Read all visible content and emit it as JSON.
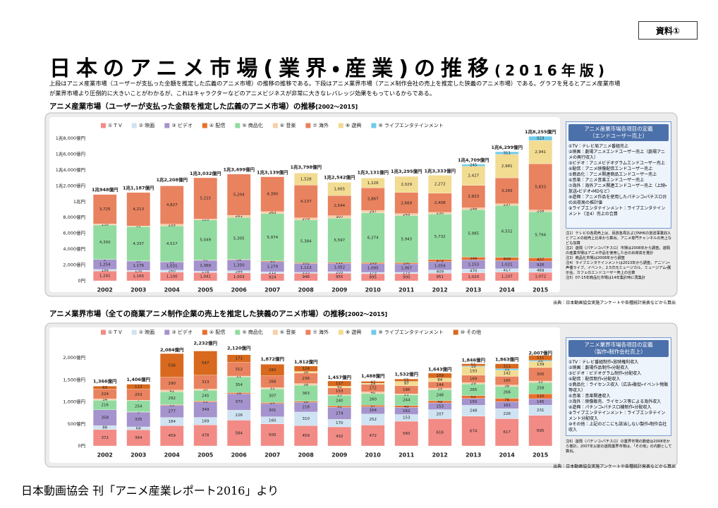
{
  "header": {
    "badge": "資料①",
    "title": "日本のアニメ市場(業界・産業)の推移",
    "title_suffix": "(2016年版)",
    "description": [
      "上段はアニメ産業市場（ユーザーが支払った金額を推定した広義のアニメ市場）の推移の推移である。下段はアニメ業界市場（アニメ制作会社の売上を推定した狭義のアニメ市場）である。グラフを見るとアニメ産業市場",
      "が業界市場より圧倒的に大きいことがわかるが、これはキャラクターなどのアニメビジネスが非常に大きなレバレッジ効果をもっているからである。"
    ]
  },
  "chart_data": [
    {
      "type": "bar",
      "stacked": true,
      "title": "アニメ産業市場（ユーザーが支払った金額を推定した広義のアニメ市場）の推移",
      "subtitle": "[2002〜2015]",
      "categories": [
        "2002",
        "2003",
        "2004",
        "2005",
        "2006",
        "2007",
        "2008",
        "2009",
        "2010",
        "2011",
        "2012",
        "2013",
        "2014",
        "2015"
      ],
      "ylim": [
        0,
        19000
      ],
      "yticks": [
        {
          "value": 0,
          "label": "0円"
        },
        {
          "value": 2000,
          "label": "2,000億円"
        },
        {
          "value": 4000,
          "label": "4,000億円"
        },
        {
          "value": 6000,
          "label": "6,000億円"
        },
        {
          "value": 8000,
          "label": "8,000億円"
        },
        {
          "value": 10000,
          "label": "1兆円"
        },
        {
          "value": 12000,
          "label": "1兆2,000億円"
        },
        {
          "value": 14000,
          "label": "1兆4,000億円"
        },
        {
          "value": 16000,
          "label": "1兆6,000億円"
        },
        {
          "value": 18000,
          "label": "1兆8,000億円"
        }
      ],
      "grid": false,
      "series": [
        {
          "name": "① T V",
          "color": "#f28b86",
          "values": [
            1241,
            1165,
            1100,
            1041,
            1003,
            924,
            946,
            955,
            895,
            900,
            951,
            1020,
            1107,
            1072
          ],
          "value_labels": [
            "1,241",
            "1,165",
            "1,100",
            "1,041",
            "1,003",
            "924",
            "946",
            "955",
            "895",
            "900",
            "951",
            "1,020",
            "1,107",
            "1,072"
          ]
        },
        {
          "name": "② 映画",
          "color": "#cfe3f2",
          "values": [
            198,
            156,
            260,
            178,
            284,
            212,
            133,
            205,
            175,
            175,
            409,
            470,
            417,
            469
          ],
          "value_labels": [
            "198",
            "156",
            "260",
            "178",
            "284",
            "212",
            "133",
            "205",
            "175",
            "175",
            "409",
            "470",
            "417",
            "469"
          ]
        },
        {
          "name": "③ ビデオ",
          "color": "#a493cc",
          "values": [
            1254,
            1176,
            1031,
            1369,
            1350,
            1279,
            1113,
            1052,
            1095,
            1067,
            1059,
            1153,
            1021,
            926
          ],
          "value_labels": [
            "1,254",
            "1,176",
            "1,031",
            "1,369",
            "1,350",
            "1,279",
            "1,113",
            "1,052",
            "1,095",
            "1,067",
            "1,059",
            "1,153",
            "1,021",
            "926"
          ]
        },
        {
          "name": "④ 配信",
          "color": "#e8702e",
          "values": [
            2,
            10,
            18,
            41,
            64,
            95,
            102,
            112,
            149,
            160,
            272,
            348,
            408,
            437
          ],
          "value_labels": [
            "2",
            "10",
            "18",
            "41",
            "64",
            "95",
            "102",
            "112",
            "149",
            "160",
            "272",
            "348",
            "408",
            "437"
          ]
        },
        {
          "name": "⑤ 商品化",
          "color": "#92dba0",
          "values": [
            4350,
            4337,
            4517,
            5049,
            5305,
            5974,
            5384,
            5597,
            6274,
            5943,
            5732,
            5985,
            6552,
            5794
          ],
          "value_labels": [
            "4,350",
            "4,337",
            "4,517",
            "5,049",
            "5,305",
            "5,974",
            "5,384",
            "5,597",
            "6,274",
            "5,943",
            "5,732",
            "5,985",
            "6,552",
            "5,794"
          ]
        },
        {
          "name": "⑥ 音楽",
          "color": "#f7cfa8",
          "values": [
            138,
            91,
            235,
            120,
            261,
            263,
            270,
            307,
            297,
            245,
            230,
            246,
            237,
            258
          ],
          "value_labels": [
            "138",
            "91",
            "235",
            "120",
            "261",
            "263",
            "270",
            "307",
            "297",
            "245",
            "230",
            "246",
            "237",
            "258"
          ]
        },
        {
          "name": "⑦ 海外",
          "color": "#e9825e",
          "values": [
            3725,
            4213,
            4827,
            5215,
            5204,
            4390,
            4137,
            2544,
            2867,
            2669,
            2408,
            2823,
            3265,
            5833
          ],
          "value_labels": [
            "3,725",
            "4,213",
            "4,827",
            "5,215",
            "5,204",
            "4,390",
            "4,137",
            "2,544",
            "2,867",
            "2,669",
            "2,408",
            "2,823",
            "3,265",
            "5,833"
          ]
        },
        {
          "name": "⑧ 遊興",
          "color": "#f2dc92",
          "values": [
            null,
            null,
            null,
            null,
            null,
            null,
            1528,
            1665,
            1226,
            2029,
            2272,
            2427,
            2981,
            2941
          ],
          "value_labels": [
            null,
            null,
            null,
            null,
            null,
            null,
            "1,528",
            "1,665",
            "1,226",
            "2,029",
            "2,272",
            "2,427",
            "2,981",
            "2,941"
          ]
        },
        {
          "name": "⑨ ライブエンタテインメント",
          "color": "#6fcbe9",
          "values": [
            null,
            null,
            null,
            null,
            null,
            null,
            null,
            null,
            null,
            null,
            null,
            245,
            311,
            523
          ],
          "value_labels": [
            null,
            null,
            null,
            null,
            null,
            null,
            null,
            null,
            null,
            null,
            null,
            "245",
            "311",
            "523"
          ]
        }
      ],
      "totals": {
        "values": [
          10948,
          11187,
          12208,
          13032,
          13499,
          13139,
          13798,
          12542,
          13131,
          13295,
          13333,
          14709,
          16299,
          18255
        ],
        "value_labels": [
          "1兆948億円",
          "1兆1,187億円",
          "1兆2,208億円",
          "1兆3,032億円",
          "1兆3,499億円",
          "1兆3,139億円",
          "1兆3,798億円",
          "1兆2,542億円",
          "1兆3,131億円",
          "1兆3,295億円",
          "1兆3,333億円",
          "1兆4,709億円",
          "1兆6,299億円",
          "1兆8,255億円"
        ]
      },
      "definitions": {
        "title": "アニメ産業市場各項目の定義",
        "subtitle": "（エンドユーザー売上）",
        "items": [
          "①TV：テレビ局アニメ番組売上",
          "②映画：劇場アニメエンドユーザー売上（劇場アニメの興行収入）",
          "③ビデオ：アニメビデオグラムエンドユーザー売上",
          "④配信：アニメ映像配信エンドユーザー売上",
          "⑤商品化：アニメ関連商品エンドユーザー売上",
          "⑥音楽：アニメ音楽エンドユーザー売上",
          "⑦海外：海外アニメ関連エンドユーザー売上（上映・放送・ビデオ・MDなど）",
          "⑧遊興：アニメ作品を使用したパチンコ・パチスロ台の出荷高の推計値",
          "⑨ライブエンタテインメント：ライブエンタテインメント（注4）売上の合算"
        ],
        "notes": [
          "注1）テレビの各局売上は、民放各局およびNHKの放送事業収入とアニメの総売上比率から算出。アニメ専門チャンネルの売上なども加算",
          "注2）遊興（パチンコ・パチスロ）市場は2008年から調査。遊興の産業市場はアニメ作品を使用した台の出荷高を推計",
          "注3）商品化市場は2008年から調査",
          "注4）ライブエンタテインメントは2013年から調査。アニソン・声優ライブ、イベント、2.5次元ミュージカル、ミュージアム・展示会、カフェのエンドユーザー売上の合算",
          "注5）07-15年商品化市場は14年集計時に再集計"
        ]
      },
      "source": "出典：日本動画協会実施アンケートや各種統計発表などから算出"
    },
    {
      "type": "bar",
      "stacked": true,
      "title": "アニメ業界市場（全ての商業アニメ制作企業の売上を推定した狭義のアニメ市場）の推移",
      "subtitle": "[2002〜2015]",
      "categories": [
        "2002",
        "2003",
        "2004",
        "2005",
        "2006",
        "2007",
        "2008",
        "2009",
        "2010",
        "2011",
        "2012",
        "2013",
        "2014",
        "2015"
      ],
      "ylim": [
        0,
        2300
      ],
      "yticks": [
        {
          "value": 0,
          "label": "0円"
        },
        {
          "value": 500,
          "label": "500億円"
        },
        {
          "value": 1000,
          "label": "1,000億円"
        },
        {
          "value": 1500,
          "label": "1,500億円"
        },
        {
          "value": 2000,
          "label": "2,000億円"
        }
      ],
      "grid": false,
      "series": [
        {
          "name": "① T V",
          "color": "#f28b86",
          "values": [
            372,
            364,
            459,
            478,
            584,
            500,
            459,
            432,
            472,
            560,
            616,
            674,
            617,
            695
          ]
        },
        {
          "name": "② 映画",
          "color": "#cfe3f2",
          "values": [
            88,
            68,
            184,
            169,
            226,
            160,
            310,
            170,
            252,
            153,
            207,
            248,
            226,
            231
          ]
        },
        {
          "name": "③ ビデオ",
          "color": "#a493cc",
          "values": [
            358,
            335,
            277,
            349,
            373,
            301,
            218,
            274,
            164,
            162,
            153,
            155,
            161,
            145
          ]
        },
        {
          "name": "④ 配信",
          "color": "#e8702e",
          "values": [
            null,
            5,
            15,
            21,
            26,
            24,
            26,
            31,
            37,
            40,
            49,
            63,
            76,
            110
          ]
        },
        {
          "name": "⑤ 商品化",
          "color": "#92dba0",
          "values": [
            216,
            254,
            292,
            245,
            354,
            307,
            363,
            240,
            260,
            244,
            248,
            265,
            266,
            258
          ]
        },
        {
          "name": "⑥ 音楽",
          "color": "#f7cfa8",
          "values": [
            34,
            7,
            41,
            30,
            21,
            31,
            38,
            15,
            40,
            21,
            39,
            29,
            36,
            33
          ]
        },
        {
          "name": "⑦ 海外",
          "color": "#e9825e",
          "values": [
            224,
            253,
            290,
            313,
            312,
            268,
            236,
            153,
            172,
            186,
            144,
            169,
            195,
            305
          ]
        },
        {
          "name": "⑧ 遊興",
          "color": "#f2dc92",
          "values": [
            null,
            null,
            null,
            null,
            null,
            null,
            38,
            40,
            25,
            97,
            84,
            193,
            142,
            139
          ]
        },
        {
          "name": "⑨ ライブエンタテインメント",
          "color": "#6fcbe9",
          "values": [
            null,
            null,
            null,
            null,
            null,
            null,
            null,
            null,
            null,
            null,
            null,
            16,
            33,
            26
          ]
        },
        {
          "name": "⑩ その他",
          "color": "#d8691e",
          "values": [
            63,
            113,
            536,
            547,
            171,
            260,
            124,
            117,
            42,
            55,
            109,
            51,
            111,
            111
          ]
        }
      ],
      "totals": {
        "values": [
          1366,
          1406,
          2084,
          2232,
          2120,
          1872,
          1812,
          1457,
          1488,
          1532,
          1643,
          1846,
          1863,
          2007
        ],
        "value_labels": [
          "1,366億円",
          "1,406億円",
          "2,084億円",
          "2,232億円",
          "2,120億円",
          "1,872億円",
          "1,812億円",
          "1,457億円",
          "1,488億円",
          "1,532億円",
          "1,643億円",
          "1,846億円",
          "1,863億円",
          "2,007億円"
        ]
      },
      "definitions": {
        "title": "アニメ業界市場各項目の定義",
        "subtitle": "（製作・制作会社売上）",
        "items": [
          "①TV：テレビ番組制作・放映権利収入",
          "②映画：劇場作品制作・分配収入",
          "③ビデオ：ビデオグラム制作・分配収入",
          "④配信：配信制作・分配収入",
          "⑤商品化：ライセンス収入（広告・販促・イベント物販等収入）",
          "⑥音楽：音楽関連収入",
          "⑦海外：映像販売、ライセンス等による海外収入",
          "⑧遊興：パチンコ・パチスロ機制作・分配収入",
          "⑨ライブエンタテインメント：ライブエンタテインメント分配収入",
          "⑩その他：上記のどこにも該当しない製作・制作会社収入"
        ],
        "notes": [
          "注6）遊興（パチンコ・パチスロ）の業界市場の数値は2008年から推計。2007年以前の遊興業界市場は、「その他」の内数として算出。"
        ]
      },
      "source": "出典：日本動画協会実施アンケートや各種統計発表などから算出"
    }
  ],
  "footer": "日本動画協会 刊「アニメ産業レポート2016」より"
}
